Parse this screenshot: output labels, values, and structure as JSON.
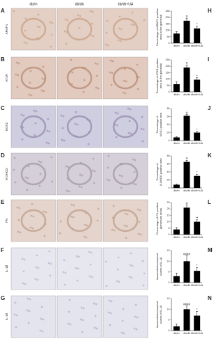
{
  "column_headers": [
    "db/m",
    "db/db",
    "db/db+UA"
  ],
  "panels": [
    {
      "letter": "A",
      "label": "ARAP1"
    },
    {
      "letter": "B",
      "label": "AT1R"
    },
    {
      "letter": "C",
      "label": "NOX2"
    },
    {
      "letter": "D",
      "label": "8-OHDG"
    },
    {
      "letter": "E",
      "label": "FN"
    },
    {
      "letter": "F",
      "label": "IL-1β"
    },
    {
      "letter": "G",
      "label": "IL-18"
    }
  ],
  "chart_data": [
    {
      "type": "bar",
      "letter": "H",
      "ylabel": [
        "Percentage of ARAP1 positive",
        "area in the glomeruli"
      ],
      "categories": [
        "db/m",
        "db/db",
        "db/db+UA"
      ],
      "values": [
        75,
        175,
        115
      ],
      "errors": [
        15,
        20,
        18
      ],
      "annotations": [
        null,
        "#",
        "*"
      ],
      "color": "#000000",
      "ylim": [
        0,
        250
      ],
      "yticks": [
        0,
        50,
        100,
        150,
        200,
        250
      ]
    },
    {
      "type": "bar",
      "letter": "I",
      "ylabel": [
        "Percentage of AT1R-positive",
        "area in the glomeruli"
      ],
      "categories": [
        "db/m",
        "db/db",
        "db/db+UA"
      ],
      "values": [
        60,
        190,
        95
      ],
      "errors": [
        18,
        20,
        15
      ],
      "annotations": [
        null,
        "#",
        "*"
      ],
      "color": "#000000",
      "ylim": [
        0,
        250
      ],
      "yticks": [
        0,
        50,
        100,
        150,
        200,
        250
      ]
    },
    {
      "type": "bar",
      "letter": "J",
      "ylabel": [
        "Percentage of",
        "NOX2 positive area"
      ],
      "categories": [
        "db/m",
        "db/db",
        "db/db+UA"
      ],
      "values": [
        8,
        62,
        20
      ],
      "errors": [
        2,
        3,
        3
      ],
      "annotations": [
        null,
        "#",
        "*"
      ],
      "color": "#000000",
      "ylim": [
        0,
        80
      ],
      "yticks": [
        0,
        20,
        40,
        60,
        80
      ]
    },
    {
      "type": "bar",
      "letter": "K",
      "ylabel": [
        "Percentage of",
        "8-OHDG positive area"
      ],
      "categories": [
        "db/m",
        "db/db",
        "db/db+UA"
      ],
      "values": [
        8,
        65,
        30
      ],
      "errors": [
        2,
        4,
        4
      ],
      "annotations": [
        null,
        "#",
        "*"
      ],
      "color": "#000000",
      "ylim": [
        0,
        80
      ],
      "yticks": [
        0,
        20,
        40,
        60,
        80
      ]
    },
    {
      "type": "bar",
      "letter": "L",
      "ylabel": [
        "Percentage of FN positive",
        "glomerular areas"
      ],
      "categories": [
        "db/m",
        "db/db",
        "db/db+UA"
      ],
      "values": [
        4,
        21,
        10
      ],
      "errors": [
        1.5,
        2,
        1.5
      ],
      "annotations": [
        null,
        "#",
        "**"
      ],
      "color": "#000000",
      "ylim": [
        0,
        25
      ],
      "yticks": [
        0,
        5,
        10,
        15,
        20,
        25
      ]
    },
    {
      "type": "bar",
      "letter": "M",
      "ylabel": [
        "Immunohistochemical",
        "scores of IL-1β"
      ],
      "categories": [
        "db/m",
        "db/db",
        "db/db+UA"
      ],
      "values": [
        3,
        10,
        5.5
      ],
      "errors": [
        1.5,
        2.5,
        1.5
      ],
      "annotations": [
        null,
        "####",
        "*"
      ],
      "color": "#000000",
      "ylim": [
        0,
        15
      ],
      "yticks": [
        0,
        5,
        10,
        15
      ]
    },
    {
      "type": "bar",
      "letter": "N",
      "ylabel": [
        "Immunohistochemical",
        "scores of IL-18"
      ],
      "categories": [
        "db/m",
        "db/db",
        "db/db+UA"
      ],
      "values": [
        2,
        10,
        7
      ],
      "errors": [
        1,
        1.5,
        2
      ],
      "annotations": [
        null,
        "####",
        "*"
      ],
      "color": "#000000",
      "ylim": [
        0,
        15
      ],
      "yticks": [
        0,
        5,
        10,
        15
      ]
    }
  ]
}
